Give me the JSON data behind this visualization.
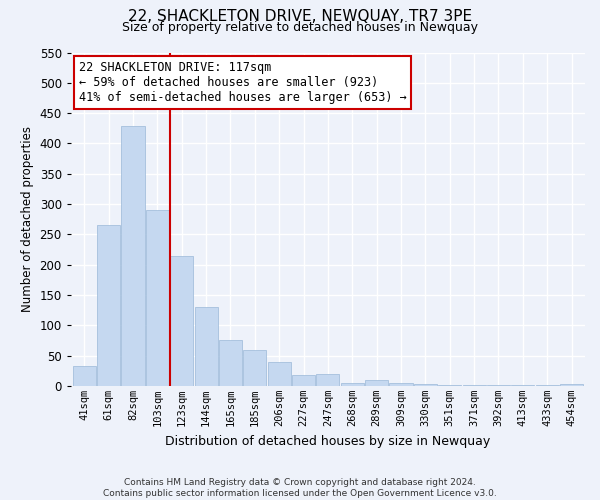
{
  "title": "22, SHACKLETON DRIVE, NEWQUAY, TR7 3PE",
  "subtitle": "Size of property relative to detached houses in Newquay",
  "xlabel": "Distribution of detached houses by size in Newquay",
  "ylabel": "Number of detached properties",
  "bar_labels": [
    "41sqm",
    "61sqm",
    "82sqm",
    "103sqm",
    "123sqm",
    "144sqm",
    "165sqm",
    "185sqm",
    "206sqm",
    "227sqm",
    "247sqm",
    "268sqm",
    "289sqm",
    "309sqm",
    "330sqm",
    "351sqm",
    "371sqm",
    "392sqm",
    "413sqm",
    "433sqm",
    "454sqm"
  ],
  "bar_values": [
    32,
    265,
    428,
    290,
    215,
    130,
    76,
    59,
    40,
    18,
    20,
    5,
    10,
    5,
    3,
    2,
    1,
    2,
    1,
    1,
    3
  ],
  "bar_color": "#c5d8f0",
  "bar_edge_color": "#9ab8d8",
  "vline_color": "#cc0000",
  "vline_pos": 3.5,
  "annotation_line1": "22 SHACKLETON DRIVE: 117sqm",
  "annotation_line2": "← 59% of detached houses are smaller (923)",
  "annotation_line3": "41% of semi-detached houses are larger (653) →",
  "ylim": [
    0,
    550
  ],
  "yticks": [
    0,
    50,
    100,
    150,
    200,
    250,
    300,
    350,
    400,
    450,
    500,
    550
  ],
  "footnote_line1": "Contains HM Land Registry data © Crown copyright and database right 2024.",
  "footnote_line2": "Contains public sector information licensed under the Open Government Licence v3.0.",
  "bg_color": "#eef2fa",
  "plot_bg_color": "#eef2fa",
  "grid_color": "#ffffff",
  "title_fontsize": 11,
  "subtitle_fontsize": 9,
  "annotation_fontsize": 8.5,
  "ylabel_fontsize": 8.5,
  "xlabel_fontsize": 9,
  "ytick_fontsize": 8.5,
  "xtick_fontsize": 7.5,
  "footnote_fontsize": 6.5
}
